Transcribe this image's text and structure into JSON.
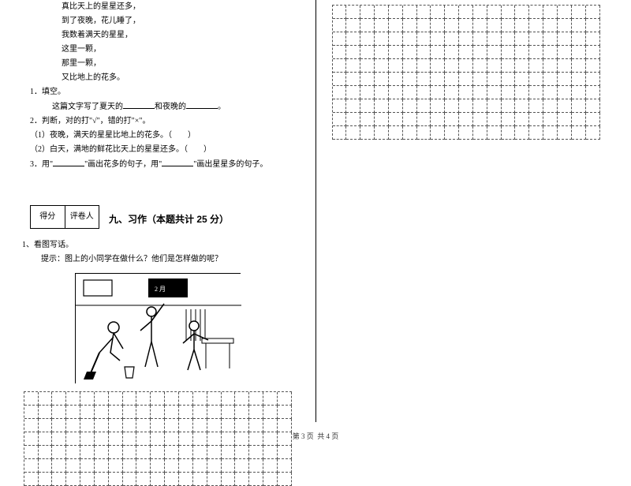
{
  "poem": {
    "l1": "真比天上的星星还多，",
    "l2": "到了夜晚，花儿睡了，",
    "l3": "我数着满天的星星，",
    "l4": "这里一颗，",
    "l5": "那里一颗，",
    "l6": "又比地上的花多。"
  },
  "q1": {
    "num": "1．填空。",
    "text_a": "这篇文字写了夏天的",
    "text_b": "和夜晚的",
    "text_c": "。"
  },
  "q2": {
    "num": "2．判断，对的打\"√\"，错的打\"×\"。",
    "i1": "（1）夜晚，满天的星星比地上的花多。（　　）",
    "i2": "（2）白天，满地的鲜花比天上的星星还多。（　　）"
  },
  "q3": {
    "num": "3．用\"",
    "t1": "\"画出花多的句子，用\"",
    "t2": "\"画出星星多的句子。"
  },
  "score": {
    "c1": "得分",
    "c2": "评卷人"
  },
  "section9": "九、习作（本题共计 25 分）",
  "writing": {
    "num": "1、看图写话。",
    "hint": "提示：图上的小同学在做什么？他们是怎样做的呢？"
  },
  "footer": {
    "a": "第 3 页",
    "b": "共 4 页"
  },
  "grid": {
    "colsA": 19,
    "rowsA": 7,
    "colsB": 19,
    "rowsB": 10
  },
  "colors": {
    "text": "#000000",
    "bg": "#ffffff",
    "dash": "#555555"
  }
}
